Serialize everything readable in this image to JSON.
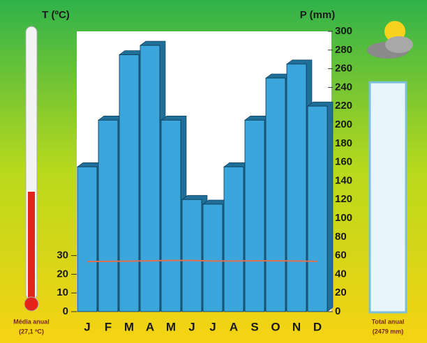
{
  "chart_data": {
    "type": "climograph",
    "y_label": "T (ºC)",
    "y2_label": "P (mm)",
    "categories": [
      "J",
      "F",
      "M",
      "A",
      "M",
      "J",
      "J",
      "A",
      "S",
      "O",
      "N",
      "D"
    ],
    "series": [
      {
        "type": "bar",
        "axis": "y2",
        "color": "#3aa6dc",
        "values": [
          155,
          205,
          275,
          285,
          205,
          120,
          115,
          155,
          205,
          250,
          265,
          220
        ]
      },
      {
        "type": "line",
        "axis": "y",
        "color": "#e0704f",
        "values": [
          26.8,
          26.9,
          27.0,
          27.2,
          27.4,
          27.4,
          27.1,
          27.1,
          27.2,
          27.2,
          27.1,
          26.9
        ]
      }
    ],
    "ylim": [
      0,
      150
    ],
    "yticks": [
      0,
      10,
      20,
      30
    ],
    "y2lim": [
      0,
      300
    ],
    "y2ticks": [
      0,
      20,
      40,
      60,
      80,
      100,
      120,
      140,
      160,
      180,
      200,
      220,
      240,
      260,
      280,
      300
    ],
    "annotations": [
      "Média anual",
      "(27,1 ºC)",
      "Total anual",
      "(2479 mm)"
    ]
  }
}
